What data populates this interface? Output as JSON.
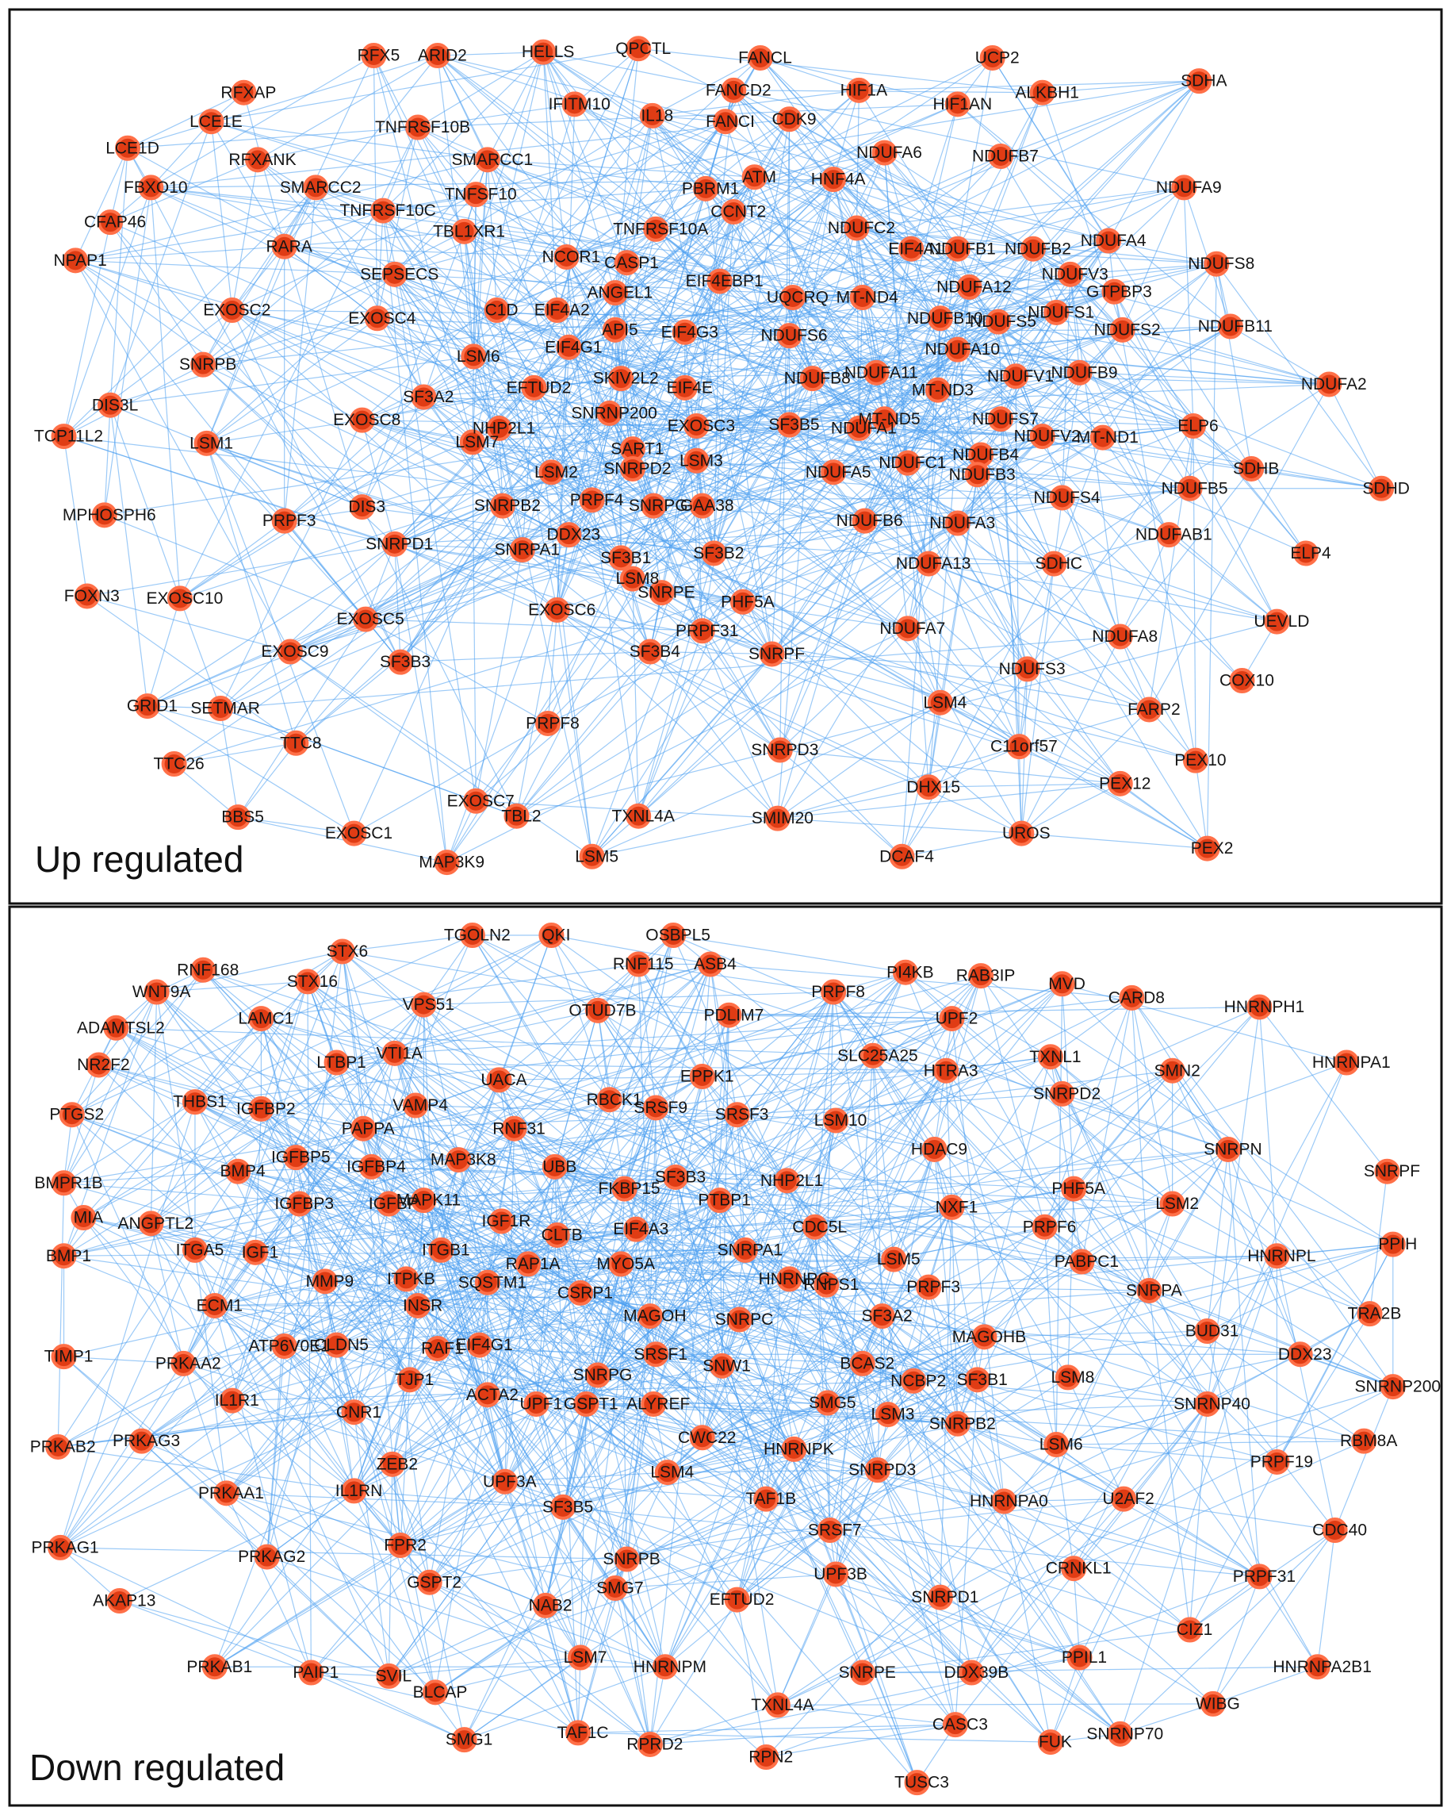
{
  "panels": [
    {
      "caption": "Up regulated",
      "nodes": [
        "RFX5",
        "ARID2",
        "HELLS",
        "QPCTL",
        "FANCL",
        "UCP2",
        "SDHA",
        "RFXAP",
        "LCE1E",
        "IFITM10",
        "IL18",
        "FANCD2",
        "HIF1A",
        "HIF1AN",
        "ALKBH1",
        "FANCI",
        "CDK9",
        "LCE1D",
        "RFXANK",
        "TNFRSF10B",
        "SMARCC1",
        "NDUFA6",
        "NDUFB7",
        "FBXO10",
        "SMARCC2",
        "TNFRSF10C",
        "TNFSF10",
        "PBRM1",
        "ATM",
        "HNF4A",
        "NDUFA9",
        "CFAP46",
        "CCNT2",
        "TNFRSF10A",
        "TBL1XR1",
        "NDUFC2",
        "NPAP1",
        "RARA",
        "NCOR1",
        "CASP1",
        "EIF4EBP1",
        "EIF4A1",
        "NDUFB1",
        "NDUFB2",
        "NDUFA4",
        "NDUFS8",
        "SEPSECS",
        "ANGEL1",
        "EXOSC2",
        "EXOSC4",
        "C1D",
        "EIF4A2",
        "UQCRQ",
        "MT-ND4",
        "NDUFA12",
        "NDUFV3",
        "GTPBP3",
        "API5",
        "EIF4G1",
        "EIF4G3",
        "NDUFB10",
        "NDUFS5",
        "NDUFS1",
        "LSM6",
        "NDUFS6",
        "NDUFA10",
        "NDUFS2",
        "NDUFB11",
        "SNRPB",
        "EFTUD2",
        "SKIV2L2",
        "EIF4E",
        "NDUFA11",
        "NDUFB8",
        "NDUFV1",
        "NDUFB9",
        "NDUFA2",
        "DIS3L",
        "SF3A2",
        "SNRNP200",
        "EXOSC3",
        "SF3B5",
        "MT-ND3",
        "MT-ND5",
        "NDUFS7",
        "EXOSC8",
        "NHP2L1",
        "LSM7",
        "NDUFA1",
        "NDUFV2",
        "MT-ND1",
        "ELP6",
        "TCP11L2",
        "LSM1",
        "SART1",
        "LSM3",
        "SNRPD2",
        "NDUFC1",
        "NDUFB4",
        "LSM2",
        "NDUFA5",
        "NDUFB3",
        "SDHB",
        "SDHD",
        "MPHOSPH6",
        "PRPF3",
        "DIS3",
        "SNRPB2",
        "PRPF4",
        "SNRPG",
        "GAA38",
        "NDUFS4",
        "NDUFB5",
        "NDUFB6",
        "NDUFA3",
        "NDUFAB1",
        "SNRPD1",
        "SNRPA1",
        "DDX23",
        "SF3B1",
        "SF3B2",
        "NDUFA13",
        "SDHC",
        "ELP4",
        "FOXN3",
        "EXOSC10",
        "LSM8",
        "SNRPE",
        "PHF5A",
        "EXOSC6",
        "EXOSC5",
        "NDUFA7",
        "NDUFA8",
        "UEVLD",
        "EXOSC9",
        "SF3B3",
        "SF3B4",
        "PRPF31",
        "SNRPF",
        "NDUFS3",
        "COX10",
        "LSM4",
        "GRID1",
        "SETMAR",
        "TTC8",
        "PRPF8",
        "FARP2",
        "SNRPD3",
        "C11orf57",
        "PEX10",
        "PEX12",
        "TTC26",
        "DHX15",
        "EXOSC7",
        "BBS5",
        "TBL2",
        "TXNL4A",
        "SMIM20",
        "PEX2",
        "UROS",
        "EXOSC1",
        "LSM5",
        "DCAF4",
        "MAP3K9"
      ]
    },
    {
      "caption": "Down regulated",
      "nodes": [
        "TGOLN2",
        "QKI",
        "OSBPL5",
        "STX6",
        "RNF115",
        "ASB4",
        "RNF168",
        "PI4KB",
        "RAB3IP",
        "STX16",
        "MVD",
        "CARD8",
        "WNT9A",
        "PRPF8",
        "HNRNPH1",
        "VPS51",
        "OTUD7B",
        "PDLIM7",
        "UPF2",
        "LAMC1",
        "ADAMTSL2",
        "SLC25A25",
        "TXNL1",
        "SMN2",
        "HNRNPA1",
        "NR2F2",
        "LTBP1",
        "VTI1A",
        "UACA",
        "EPPK1",
        "HTRA3",
        "SNRPD2",
        "THBS1",
        "IGFBP2",
        "PTGS2",
        "VAMP4",
        "RBCK1",
        "SRSF9",
        "SRSF3",
        "LSM10",
        "PAPPA",
        "RNF31",
        "SNRPN",
        "SNRPF",
        "HDAC9",
        "BMPR1B",
        "BMP4",
        "IGFBP5",
        "IGFBP4",
        "MAP3K8",
        "UBB",
        "SF3B3",
        "NHP2L1",
        "PHF5A",
        "LSM2",
        "FKBP15",
        "PTBP1",
        "IGFBP3",
        "IGFBP",
        "MAPK11",
        "NXF1",
        "ANGPTL2",
        "MIA",
        "IGF1R",
        "CLTB",
        "EIF4A3",
        "CDC5L",
        "PRPF6",
        "PPIH",
        "BMP1",
        "ITGA5",
        "IGF1",
        "ITGB1",
        "MYO5A",
        "SNRPA1",
        "HNRNPL",
        "RAP1A",
        "LSM5",
        "PABPC1",
        "MMP9",
        "ITPKB",
        "SQSTM1",
        "CSRP1",
        "HNRNPC",
        "RNPS1",
        "PRPF3",
        "SNRPA",
        "TRA2B",
        "ECM1",
        "INSR",
        "MAGOH",
        "SNRPC",
        "SF3A2",
        "MAGOHB",
        "BUD31",
        "DDX23",
        "CLDN5",
        "ATP6V0E1",
        "RAF1",
        "EIF4G1",
        "TIMP1",
        "PRKAA2",
        "SRSF1",
        "SNW1",
        "BCAS2",
        "NCBP2",
        "SF3B1",
        "LSM8",
        "SNRNP200",
        "TJP1",
        "ACTA2",
        "UPF1",
        "SNRPG",
        "GSPT1",
        "ALYREF",
        "SMG5",
        "LSM3",
        "SNRPB2",
        "SNRNP40",
        "RBM8A",
        "IL1R1",
        "CNR1",
        "CWC22",
        "LSM6",
        "PRKAB2",
        "PRKAG3",
        "HNRNPK",
        "ZEB2",
        "UPF3A",
        "LSM4",
        "SNRPD3",
        "PRPF19",
        "IL1RN",
        "PRKAA1",
        "SF3B5",
        "TAF1B",
        "HNRNPA0",
        "U2AF2",
        "CDC40",
        "SNRPB",
        "SRSF7",
        "FPR2",
        "PRKAG1",
        "PRKAG2",
        "CRNKL1",
        "PRPF31",
        "GSPT2",
        "UPF3B",
        "SMG7",
        "EFTUD2",
        "SNRPD1",
        "NAB2",
        "AKAP13",
        "CIZ1",
        "LSM7",
        "HNRNPM",
        "SNRPE",
        "DDX39B",
        "PPIL1",
        "HNRNPA2B1",
        "PRKAB1",
        "PAIP1",
        "SVIL",
        "BLCAP",
        "TXNL4A",
        "WIBG",
        "CASC3",
        "FUK",
        "SNRNP70",
        "SMG1",
        "TAF1C",
        "RPRD2",
        "RPN2",
        "TUSC3"
      ]
    }
  ]
}
